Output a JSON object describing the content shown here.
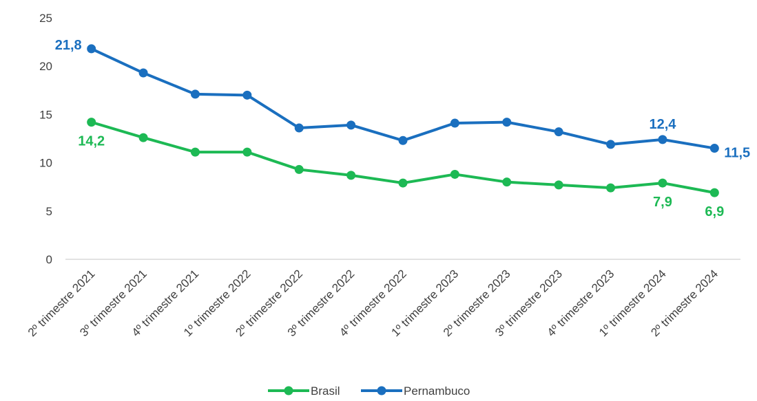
{
  "chart_data": {
    "type": "line",
    "categories": [
      "2º trimestre 2021",
      "3º trimestre 2021",
      "4º trimestre 2021",
      "1º trimestre 2022",
      "2º trimestre 2022",
      "3º trimestre 2022",
      "4º trimestre 2022",
      "1º trimestre 2023",
      "2º trimestre 2023",
      "3º trimestre 2023",
      "4º trimestre 2023",
      "1º trimestre 2024",
      "2º trimestre 2024"
    ],
    "series": [
      {
        "name": "Brasil",
        "color": "#1DB954",
        "values": [
          14.2,
          12.6,
          11.1,
          11.1,
          9.3,
          8.7,
          7.9,
          8.8,
          8.0,
          7.7,
          7.4,
          7.9,
          6.9
        ],
        "labels": [
          {
            "index": 0,
            "text": "14,2",
            "position": "below"
          },
          {
            "index": 11,
            "text": "7,9",
            "position": "below"
          },
          {
            "index": 12,
            "text": "6,9",
            "position": "below"
          }
        ]
      },
      {
        "name": "Pernambuco",
        "color": "#1A6FBF",
        "values": [
          21.8,
          19.3,
          17.1,
          17.0,
          13.6,
          13.9,
          12.3,
          14.1,
          14.2,
          13.2,
          11.9,
          12.4,
          11.5
        ],
        "labels": [
          {
            "index": 0,
            "text": "21,8",
            "position": "left"
          },
          {
            "index": 11,
            "text": "12,4",
            "position": "above"
          },
          {
            "index": 12,
            "text": "11,5",
            "position": "right"
          }
        ]
      }
    ],
    "yticks": [
      "0",
      "5",
      "10",
      "15",
      "20",
      "25"
    ],
    "ylim": [
      0,
      25
    ],
    "grid": false,
    "legend": "bottom"
  }
}
